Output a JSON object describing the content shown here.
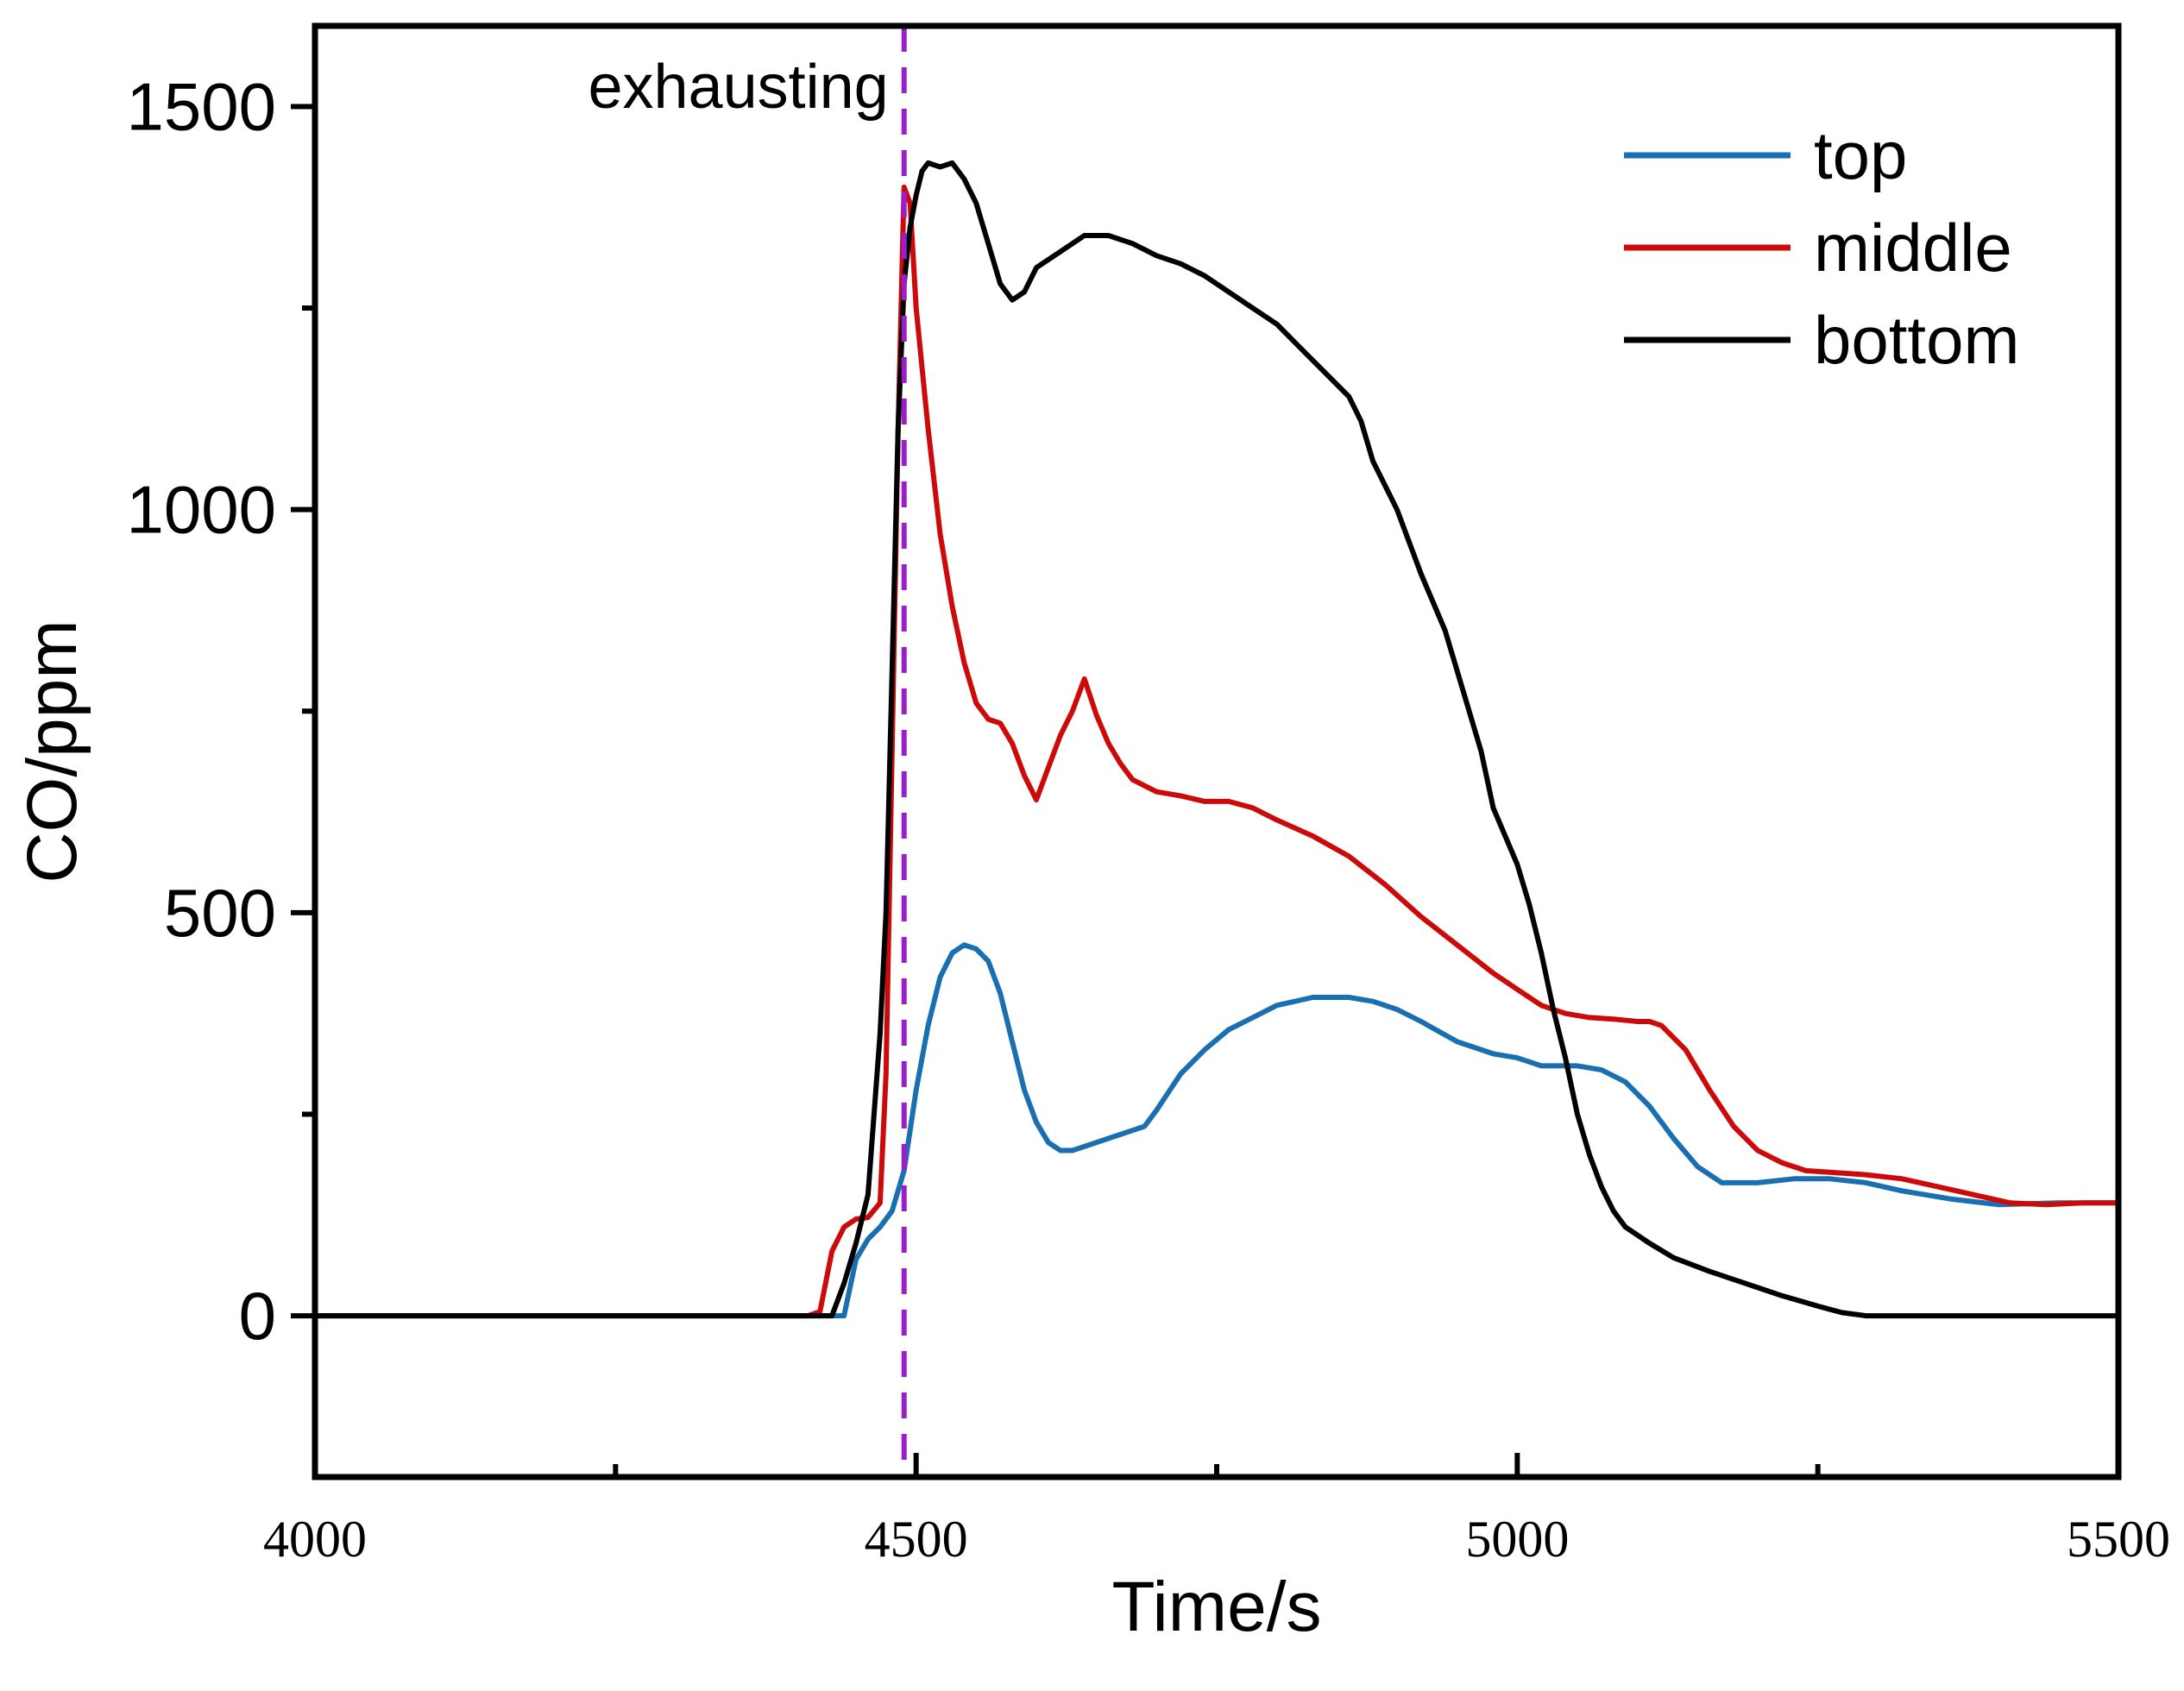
{
  "chart_data": {
    "type": "line",
    "title": "",
    "xlabel": "Time/s",
    "ylabel": "CO/ppm",
    "xlim": [
      4000,
      5500
    ],
    "ylim": [
      -200,
      1600
    ],
    "xticks": [
      4000,
      4500,
      5000,
      5500
    ],
    "xticks_minor": [
      4250,
      4750,
      5250
    ],
    "yticks": [
      0,
      500,
      1000,
      1500
    ],
    "yticks_minor": [
      250,
      750,
      1250
    ],
    "grid": false,
    "legend_position": "top-right",
    "colors": {
      "top": "#1a6fb0",
      "middle": "#cc0a0a",
      "bottom": "#000000",
      "annotation": "#9b1fc9"
    },
    "annotation": {
      "label": "exhausting",
      "x": 4490
    },
    "series": [
      {
        "name": "top",
        "points": [
          [
            4000,
            0
          ],
          [
            4200,
            0
          ],
          [
            4400,
            0
          ],
          [
            4430,
            0
          ],
          [
            4440,
            0
          ],
          [
            4450,
            70
          ],
          [
            4460,
            95
          ],
          [
            4470,
            110
          ],
          [
            4480,
            130
          ],
          [
            4490,
            180
          ],
          [
            4500,
            280
          ],
          [
            4510,
            360
          ],
          [
            4520,
            420
          ],
          [
            4530,
            450
          ],
          [
            4540,
            460
          ],
          [
            4550,
            455
          ],
          [
            4560,
            440
          ],
          [
            4570,
            400
          ],
          [
            4580,
            340
          ],
          [
            4590,
            280
          ],
          [
            4600,
            240
          ],
          [
            4610,
            215
          ],
          [
            4620,
            205
          ],
          [
            4630,
            205
          ],
          [
            4640,
            210
          ],
          [
            4650,
            215
          ],
          [
            4660,
            220
          ],
          [
            4670,
            225
          ],
          [
            4680,
            230
          ],
          [
            4690,
            235
          ],
          [
            4700,
            255
          ],
          [
            4720,
            300
          ],
          [
            4740,
            330
          ],
          [
            4760,
            355
          ],
          [
            4780,
            370
          ],
          [
            4800,
            385
          ],
          [
            4830,
            395
          ],
          [
            4860,
            395
          ],
          [
            4880,
            390
          ],
          [
            4900,
            380
          ],
          [
            4920,
            365
          ],
          [
            4950,
            340
          ],
          [
            4980,
            325
          ],
          [
            5000,
            320
          ],
          [
            5020,
            310
          ],
          [
            5050,
            310
          ],
          [
            5070,
            305
          ],
          [
            5090,
            290
          ],
          [
            5110,
            260
          ],
          [
            5130,
            220
          ],
          [
            5150,
            185
          ],
          [
            5170,
            165
          ],
          [
            5200,
            165
          ],
          [
            5230,
            170
          ],
          [
            5260,
            170
          ],
          [
            5290,
            165
          ],
          [
            5320,
            155
          ],
          [
            5360,
            145
          ],
          [
            5400,
            138
          ],
          [
            5450,
            140
          ],
          [
            5500,
            140
          ]
        ]
      },
      {
        "name": "middle",
        "points": [
          [
            4000,
            0
          ],
          [
            4200,
            0
          ],
          [
            4400,
            0
          ],
          [
            4410,
            0
          ],
          [
            4420,
            5
          ],
          [
            4430,
            80
          ],
          [
            4440,
            110
          ],
          [
            4450,
            120
          ],
          [
            4460,
            122
          ],
          [
            4470,
            140
          ],
          [
            4475,
            300
          ],
          [
            4480,
            700
          ],
          [
            4485,
            1100
          ],
          [
            4490,
            1400
          ],
          [
            4495,
            1380
          ],
          [
            4500,
            1250
          ],
          [
            4510,
            1100
          ],
          [
            4520,
            970
          ],
          [
            4530,
            880
          ],
          [
            4540,
            810
          ],
          [
            4550,
            760
          ],
          [
            4560,
            740
          ],
          [
            4570,
            735
          ],
          [
            4580,
            710
          ],
          [
            4590,
            670
          ],
          [
            4600,
            640
          ],
          [
            4610,
            680
          ],
          [
            4620,
            720
          ],
          [
            4630,
            750
          ],
          [
            4640,
            790
          ],
          [
            4650,
            745
          ],
          [
            4660,
            710
          ],
          [
            4670,
            685
          ],
          [
            4680,
            665
          ],
          [
            4700,
            650
          ],
          [
            4720,
            645
          ],
          [
            4740,
            638
          ],
          [
            4760,
            638
          ],
          [
            4780,
            630
          ],
          [
            4800,
            615
          ],
          [
            4830,
            595
          ],
          [
            4860,
            570
          ],
          [
            4890,
            535
          ],
          [
            4920,
            495
          ],
          [
            4950,
            460
          ],
          [
            4980,
            425
          ],
          [
            5000,
            405
          ],
          [
            5020,
            385
          ],
          [
            5040,
            375
          ],
          [
            5060,
            370
          ],
          [
            5080,
            368
          ],
          [
            5100,
            365
          ],
          [
            5110,
            365
          ],
          [
            5120,
            360
          ],
          [
            5140,
            330
          ],
          [
            5160,
            280
          ],
          [
            5180,
            235
          ],
          [
            5200,
            205
          ],
          [
            5220,
            190
          ],
          [
            5240,
            180
          ],
          [
            5260,
            178
          ],
          [
            5290,
            175
          ],
          [
            5320,
            170
          ],
          [
            5350,
            160
          ],
          [
            5380,
            150
          ],
          [
            5410,
            140
          ],
          [
            5440,
            138
          ],
          [
            5470,
            140
          ],
          [
            5500,
            140
          ]
        ]
      },
      {
        "name": "bottom",
        "points": [
          [
            4000,
            0
          ],
          [
            4200,
            0
          ],
          [
            4400,
            0
          ],
          [
            4430,
            0
          ],
          [
            4440,
            40
          ],
          [
            4450,
            90
          ],
          [
            4460,
            150
          ],
          [
            4465,
            250
          ],
          [
            4470,
            350
          ],
          [
            4475,
            500
          ],
          [
            4480,
            800
          ],
          [
            4485,
            1100
          ],
          [
            4490,
            1280
          ],
          [
            4495,
            1350
          ],
          [
            4500,
            1390
          ],
          [
            4505,
            1420
          ],
          [
            4510,
            1430
          ],
          [
            4520,
            1425
          ],
          [
            4530,
            1430
          ],
          [
            4540,
            1410
          ],
          [
            4550,
            1380
          ],
          [
            4560,
            1330
          ],
          [
            4570,
            1280
          ],
          [
            4580,
            1260
          ],
          [
            4590,
            1270
          ],
          [
            4600,
            1300
          ],
          [
            4620,
            1320
          ],
          [
            4640,
            1340
          ],
          [
            4660,
            1340
          ],
          [
            4680,
            1330
          ],
          [
            4700,
            1315
          ],
          [
            4720,
            1305
          ],
          [
            4740,
            1290
          ],
          [
            4760,
            1270
          ],
          [
            4780,
            1250
          ],
          [
            4800,
            1230
          ],
          [
            4820,
            1200
          ],
          [
            4840,
            1170
          ],
          [
            4860,
            1140
          ],
          [
            4870,
            1110
          ],
          [
            4880,
            1060
          ],
          [
            4900,
            1000
          ],
          [
            4920,
            920
          ],
          [
            4940,
            850
          ],
          [
            4960,
            750
          ],
          [
            4970,
            700
          ],
          [
            4980,
            630
          ],
          [
            5000,
            560
          ],
          [
            5010,
            510
          ],
          [
            5020,
            450
          ],
          [
            5030,
            380
          ],
          [
            5040,
            320
          ],
          [
            5050,
            250
          ],
          [
            5060,
            200
          ],
          [
            5070,
            160
          ],
          [
            5080,
            130
          ],
          [
            5090,
            110
          ],
          [
            5110,
            90
          ],
          [
            5130,
            72
          ],
          [
            5160,
            55
          ],
          [
            5190,
            40
          ],
          [
            5220,
            25
          ],
          [
            5250,
            12
          ],
          [
            5270,
            4
          ],
          [
            5290,
            0
          ],
          [
            5400,
            0
          ],
          [
            5500,
            0
          ]
        ]
      }
    ]
  }
}
